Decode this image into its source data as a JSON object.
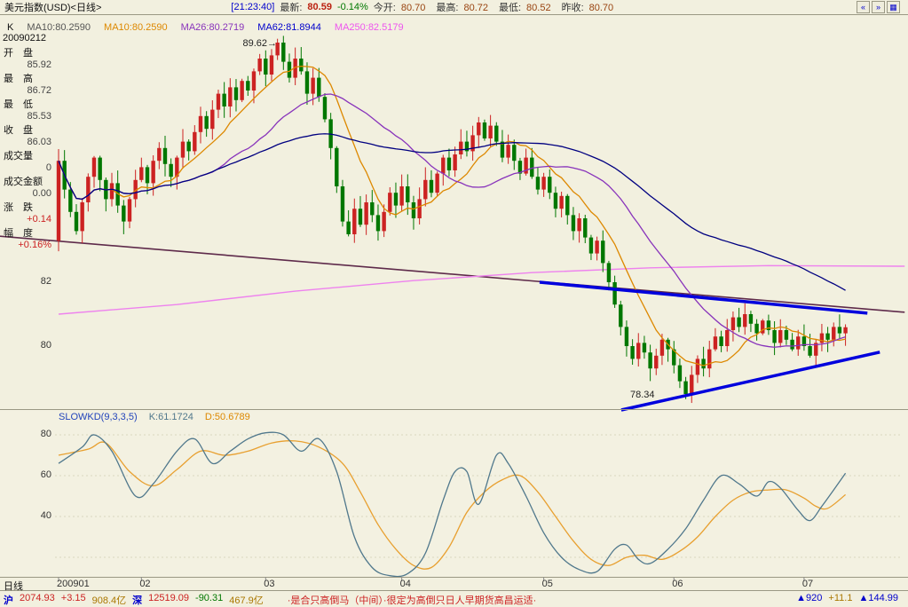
{
  "title_bar": {
    "title": "美元指数(USD)<日线>",
    "time": "[21:23:40]",
    "last": {
      "label": "最新:",
      "value": "80.59",
      "change_pct": "-0.14%"
    },
    "open": {
      "label": "今开:",
      "value": "80.70"
    },
    "high": {
      "label": "最高:",
      "value": "80.72"
    },
    "low": {
      "label": "最低:",
      "value": "80.52"
    },
    "prev_close": {
      "label": "昨收:",
      "value": "80.70"
    },
    "buttons": [
      "«",
      "»",
      "▦"
    ]
  },
  "ma_bar": {
    "k_label": "K",
    "items": [
      {
        "label": "MA10:80.2590",
        "color": "#555555"
      },
      {
        "label": "MA10:80.2590",
        "color": "#DD8800"
      },
      {
        "label": "MA26:80.2719",
        "color": "#8833BB"
      },
      {
        "label": "MA62:81.8944",
        "color": "#0000CC"
      },
      {
        "label": "MA250:82.5179",
        "color": "#EE55EE"
      }
    ]
  },
  "info_panel": {
    "date": "20090212",
    "rows": [
      {
        "label": "开　盘",
        "value": "85.92"
      },
      {
        "label": "最　高",
        "value": "86.72"
      },
      {
        "label": "最　低",
        "value": "85.53"
      },
      {
        "label": "收　盘",
        "value": "86.03"
      },
      {
        "label": "成交量",
        "value": "0"
      },
      {
        "label": "成交金额",
        "value": "0.00"
      },
      {
        "label": "涨　跌",
        "value": "+0.14"
      },
      {
        "label": "幅　度",
        "value": "+0.16%"
      }
    ]
  },
  "chart_data": {
    "type": "candlestick",
    "symbol": "美元指数(USD)",
    "period": "日线",
    "price_ylabels": [
      "82",
      "80"
    ],
    "up_color": "#CC2222",
    "down_color": "#007700",
    "first_open": 83.3,
    "closes": [
      85.8,
      84.9,
      84.2,
      83.6,
      84.5,
      85.3,
      85.9,
      85.2,
      84.6,
      85.1,
      84.4,
      83.9,
      84.6,
      85.2,
      85.6,
      85.1,
      85.8,
      86.2,
      85.7,
      85.3,
      85.9,
      86.4,
      86.1,
      86.7,
      87.2,
      86.8,
      87.4,
      87.9,
      87.5,
      88.1,
      87.7,
      88.3,
      88.0,
      88.6,
      89.0,
      88.5,
      89.1,
      89.5,
      88.9,
      88.4,
      89.0,
      88.6,
      87.9,
      88.4,
      87.8,
      87.1,
      86.2,
      85.0,
      83.9,
      83.5,
      84.3,
      83.8,
      84.5,
      84.1,
      83.6,
      84.2,
      84.8,
      84.4,
      85.0,
      84.5,
      84.0,
      84.6,
      85.2,
      84.8,
      85.4,
      85.9,
      85.5,
      86.0,
      86.4,
      86.1,
      86.6,
      87.0,
      86.5,
      86.9,
      86.4,
      85.9,
      86.3,
      85.8,
      85.4,
      85.9,
      85.3,
      84.9,
      85.3,
      84.8,
      84.3,
      84.7,
      84.1,
      83.6,
      84.0,
      83.4,
      82.9,
      83.3,
      82.6,
      82.0,
      81.3,
      80.6,
      80.0,
      79.6,
      80.1,
      79.8,
      79.3,
      79.7,
      80.2,
      79.9,
      79.4,
      78.9,
      78.5,
      79.1,
      79.6,
      79.3,
      79.9,
      80.3,
      80.0,
      80.5,
      80.9,
      80.6,
      81.0,
      80.7,
      80.4,
      80.8,
      80.5,
      80.1,
      80.5,
      80.2,
      79.9,
      80.3,
      80.0,
      79.7,
      80.1,
      80.4,
      80.2,
      80.6,
      80.4,
      80.59
    ],
    "high_annotation": {
      "text": "89.62→",
      "value": 89.62
    },
    "low_annotation": {
      "text": "78.34",
      "value": 78.34
    },
    "ma": [
      {
        "window": 10,
        "color": "#DD8800"
      },
      {
        "window": 26,
        "color": "#8833BB"
      },
      {
        "window": 62,
        "color": "#000080"
      }
    ],
    "ma250": {
      "color": "#EE82EE",
      "points": [
        [
          0,
          81.0
        ],
        [
          20,
          81.3
        ],
        [
          40,
          81.72
        ],
        [
          60,
          82.05
        ],
        [
          80,
          82.3
        ],
        [
          100,
          82.45
        ],
        [
          120,
          82.52
        ],
        [
          143,
          82.5
        ]
      ]
    },
    "trendlines": [
      {
        "color": "#5E2A4A",
        "width": 1.6,
        "points": [
          [
            -9.9,
            83.44
          ],
          [
            143,
            81.06
          ]
        ]
      },
      {
        "color": "#0000DD",
        "width": 3.5,
        "points": [
          [
            81.3,
            82.0
          ],
          [
            136.7,
            81.03
          ]
        ]
      },
      {
        "color": "#0000DD",
        "width": 3.5,
        "points": [
          [
            95.1,
            78.0
          ],
          [
            138.8,
            79.81
          ]
        ]
      }
    ],
    "slowkd": {
      "params": "(9,3,3,5)",
      "k": 61.1724,
      "d": 50.6789,
      "k_color": "#50788C",
      "d_color": "#E8A030",
      "yticks": [
        80,
        60,
        40
      ],
      "k_points": [
        [
          0,
          66
        ],
        [
          4,
          74
        ],
        [
          6,
          80
        ],
        [
          9,
          72
        ],
        [
          13,
          50
        ],
        [
          16,
          56
        ],
        [
          20,
          72
        ],
        [
          23,
          78
        ],
        [
          26,
          66
        ],
        [
          29,
          72
        ],
        [
          32,
          78
        ],
        [
          35,
          81
        ],
        [
          38,
          80
        ],
        [
          41,
          72
        ],
        [
          44,
          78
        ],
        [
          47,
          62
        ],
        [
          50,
          30
        ],
        [
          53,
          15
        ],
        [
          56,
          11
        ],
        [
          59,
          12
        ],
        [
          62,
          22
        ],
        [
          65,
          48
        ],
        [
          67,
          62
        ],
        [
          69,
          62
        ],
        [
          71,
          46
        ],
        [
          74,
          70
        ],
        [
          76,
          66
        ],
        [
          79,
          50
        ],
        [
          82,
          32
        ],
        [
          85,
          20
        ],
        [
          88,
          14
        ],
        [
          91,
          13
        ],
        [
          94,
          24
        ],
        [
          96,
          26
        ],
        [
          98,
          19
        ],
        [
          100,
          17
        ],
        [
          103,
          24
        ],
        [
          106,
          34
        ],
        [
          109,
          48
        ],
        [
          112,
          60
        ],
        [
          115,
          56
        ],
        [
          118,
          50
        ],
        [
          120,
          57
        ],
        [
          122,
          54
        ],
        [
          125,
          43
        ],
        [
          127,
          38
        ],
        [
          129,
          45
        ],
        [
          131,
          53
        ],
        [
          133,
          61.2
        ]
      ],
      "d_points": [
        [
          0,
          70
        ],
        [
          5,
          73
        ],
        [
          8,
          76
        ],
        [
          12,
          62
        ],
        [
          16,
          55
        ],
        [
          20,
          63
        ],
        [
          24,
          72
        ],
        [
          28,
          70
        ],
        [
          32,
          72
        ],
        [
          36,
          76
        ],
        [
          40,
          77
        ],
        [
          44,
          74
        ],
        [
          48,
          66
        ],
        [
          51,
          52
        ],
        [
          54,
          36
        ],
        [
          57,
          24
        ],
        [
          60,
          16
        ],
        [
          63,
          15
        ],
        [
          66,
          25
        ],
        [
          69,
          42
        ],
        [
          72,
          52
        ],
        [
          75,
          58
        ],
        [
          78,
          60
        ],
        [
          81,
          52
        ],
        [
          84,
          40
        ],
        [
          87,
          28
        ],
        [
          90,
          19
        ],
        [
          93,
          16
        ],
        [
          96,
          20
        ],
        [
          99,
          21
        ],
        [
          102,
          19
        ],
        [
          105,
          23
        ],
        [
          108,
          30
        ],
        [
          111,
          40
        ],
        [
          114,
          48
        ],
        [
          117,
          52
        ],
        [
          120,
          53
        ],
        [
          123,
          53
        ],
        [
          126,
          49
        ],
        [
          128,
          45
        ],
        [
          130,
          44
        ],
        [
          133,
          50.7
        ]
      ]
    }
  },
  "kd_panel": {
    "name": "SLOWKD(9,3,3,5)",
    "k_text": "K:61.1724",
    "d_text": "D:50.6789",
    "yticks": [
      "80",
      "60",
      "40"
    ]
  },
  "x_axis": {
    "period_label": "日线",
    "ticks": [
      {
        "label": "200901",
        "day": 0
      },
      {
        "label": "02",
        "day": 14
      },
      {
        "label": "03",
        "day": 35
      },
      {
        "label": "04",
        "day": 58
      },
      {
        "label": "05",
        "day": 82
      },
      {
        "label": "06",
        "day": 104
      },
      {
        "label": "07",
        "day": 126
      }
    ]
  },
  "ticker": {
    "index1": {
      "badge": "沪",
      "value": "2074.93",
      "change": "+3.15",
      "amount": "908.4亿"
    },
    "index2": {
      "badge": "深",
      "value": "12519.09",
      "change": "-90.31",
      "amount": "467.9亿"
    },
    "news": "·是合只高倒马（中间）·很定为高倒只日人早期货高昌运适·",
    "right": [
      {
        "text": "▲920"
      },
      {
        "text": "+11.1"
      },
      {
        "text": "▲144.99"
      }
    ]
  }
}
